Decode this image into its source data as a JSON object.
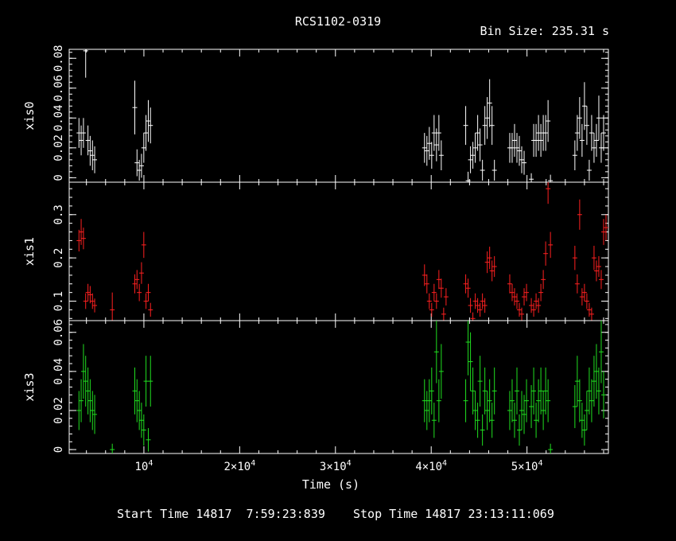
{
  "title": "RCS1102-0319",
  "bin_size_text": "Bin Size: 235.31 s",
  "footer": {
    "start": "Start Time 14817  7:59:23:839",
    "stop": "Stop Time 14817 23:13:11:069"
  },
  "colors": {
    "background": "#000000",
    "axes": "#ffffff",
    "xis0": "#ffffff",
    "xis1": "#ff2020",
    "xis3": "#20e020"
  },
  "chart_data": {
    "type": "scatter",
    "xlabel": "Time (s)",
    "xlim": [
      2200,
      58500
    ],
    "xticks": [
      {
        "value": 10000,
        "label": "10^4"
      },
      {
        "value": 20000,
        "label": "2×10^4"
      },
      {
        "value": 30000,
        "label": "3×10^4"
      },
      {
        "value": 40000,
        "label": "4×10^4"
      },
      {
        "value": 50000,
        "label": "5×10^4"
      }
    ],
    "panels": [
      {
        "name": "xis0",
        "ylabel": "xis0",
        "color": "#ffffff",
        "ylim": [
          -0.003,
          0.086
        ],
        "yticks": [
          {
            "value": 0,
            "label": "0"
          },
          {
            "value": 0.02,
            "label": "0.02"
          },
          {
            "value": 0.04,
            "label": "0.04"
          },
          {
            "value": 0.06,
            "label": "0.06"
          },
          {
            "value": 0.08,
            "label": "0.08"
          }
        ],
        "points": [
          [
            3220,
            0.03,
            0.01
          ],
          [
            3450,
            0.025,
            0.01
          ],
          [
            3690,
            0.03,
            0.01
          ],
          [
            3920,
            0.085,
            0.018
          ],
          [
            4160,
            0.025,
            0.01
          ],
          [
            4390,
            0.018,
            0.01
          ],
          [
            4630,
            0.015,
            0.01
          ],
          [
            4860,
            0.012,
            0.009
          ],
          [
            9050,
            0.047,
            0.018
          ],
          [
            9280,
            0.01,
            0.009
          ],
          [
            9520,
            0.005,
            0.007
          ],
          [
            9750,
            0.008,
            0.008
          ],
          [
            9990,
            0.02,
            0.01
          ],
          [
            10220,
            0.03,
            0.012
          ],
          [
            10460,
            0.038,
            0.014
          ],
          [
            10690,
            0.035,
            0.012
          ],
          [
            39300,
            0.02,
            0.01
          ],
          [
            39550,
            0.018,
            0.01
          ],
          [
            39800,
            0.023,
            0.011
          ],
          [
            40050,
            0.015,
            0.009
          ],
          [
            40300,
            0.03,
            0.012
          ],
          [
            40550,
            0.022,
            0.011
          ],
          [
            40800,
            0.03,
            0.012
          ],
          [
            41050,
            0.015,
            0.01
          ],
          [
            43600,
            0.035,
            0.013
          ],
          [
            43850,
            -0.002,
            0.006
          ],
          [
            44100,
            0.012,
            0.009
          ],
          [
            44350,
            0.015,
            0.009
          ],
          [
            44600,
            0.02,
            0.01
          ],
          [
            44850,
            0.03,
            0.012
          ],
          [
            45100,
            0.022,
            0.011
          ],
          [
            45350,
            0.005,
            0.007
          ],
          [
            45600,
            0.035,
            0.013
          ],
          [
            45850,
            0.04,
            0.014
          ],
          [
            46100,
            0.05,
            0.016
          ],
          [
            46350,
            0.035,
            0.013
          ],
          [
            46600,
            0.005,
            0.007
          ],
          [
            48200,
            0.02,
            0.01
          ],
          [
            48450,
            0.02,
            0.01
          ],
          [
            48700,
            0.025,
            0.011
          ],
          [
            48950,
            0.02,
            0.01
          ],
          [
            49200,
            0.018,
            0.01
          ],
          [
            49450,
            0.012,
            0.009
          ],
          [
            49700,
            0.01,
            0.008
          ],
          [
            50450,
            -0.001,
            0.004
          ],
          [
            50700,
            0.025,
            0.011
          ],
          [
            50950,
            0.025,
            0.011
          ],
          [
            51200,
            0.03,
            0.012
          ],
          [
            51450,
            0.025,
            0.011
          ],
          [
            51700,
            0.03,
            0.012
          ],
          [
            51950,
            0.03,
            0.012
          ],
          [
            52200,
            0.038,
            0.014
          ],
          [
            52450,
            -0.002,
            0.004
          ],
          [
            55000,
            0.015,
            0.01
          ],
          [
            55250,
            0.03,
            0.012
          ],
          [
            55500,
            0.04,
            0.014
          ],
          [
            55750,
            0.025,
            0.011
          ],
          [
            56000,
            0.048,
            0.016
          ],
          [
            56250,
            0.035,
            0.013
          ],
          [
            56500,
            0.005,
            0.007
          ],
          [
            56750,
            0.03,
            0.012
          ],
          [
            57000,
            0.02,
            0.01
          ],
          [
            57250,
            0.025,
            0.011
          ],
          [
            57500,
            0.04,
            0.015
          ],
          [
            57750,
            0.02,
            0.01
          ],
          [
            58000,
            0.03,
            0.012
          ]
        ]
      },
      {
        "name": "xis1",
        "ylabel": "xis1",
        "color": "#ff2020",
        "ylim": [
          0.055,
          0.375
        ],
        "yticks": [
          {
            "value": 0.1,
            "label": "0.1"
          },
          {
            "value": 0.2,
            "label": "0.2"
          },
          {
            "value": 0.3,
            "label": "0.3"
          }
        ],
        "points": [
          [
            3220,
            0.24,
            0.025
          ],
          [
            3450,
            0.26,
            0.03
          ],
          [
            3690,
            0.245,
            0.025
          ],
          [
            3920,
            0.1,
            0.018
          ],
          [
            4160,
            0.12,
            0.02
          ],
          [
            4390,
            0.115,
            0.02
          ],
          [
            4630,
            0.1,
            0.018
          ],
          [
            4860,
            0.09,
            0.016
          ],
          [
            6700,
            0.08,
            0.04
          ],
          [
            9050,
            0.14,
            0.022
          ],
          [
            9280,
            0.15,
            0.022
          ],
          [
            9520,
            0.12,
            0.02
          ],
          [
            9750,
            0.165,
            0.025
          ],
          [
            9990,
            0.23,
            0.03
          ],
          [
            10220,
            0.1,
            0.018
          ],
          [
            10460,
            0.12,
            0.02
          ],
          [
            10690,
            0.08,
            0.016
          ],
          [
            39300,
            0.16,
            0.025
          ],
          [
            39550,
            0.14,
            0.022
          ],
          [
            39800,
            0.1,
            0.018
          ],
          [
            40050,
            0.08,
            0.016
          ],
          [
            40300,
            0.12,
            0.02
          ],
          [
            40550,
            0.1,
            0.018
          ],
          [
            40800,
            0.15,
            0.022
          ],
          [
            41050,
            0.13,
            0.022
          ],
          [
            41300,
            0.07,
            0.015
          ],
          [
            41550,
            0.11,
            0.02
          ],
          [
            43600,
            0.14,
            0.022
          ],
          [
            43850,
            0.13,
            0.022
          ],
          [
            44100,
            0.09,
            0.017
          ],
          [
            44350,
            0.06,
            0.014
          ],
          [
            44600,
            0.1,
            0.018
          ],
          [
            44850,
            0.09,
            0.017
          ],
          [
            45100,
            0.08,
            0.016
          ],
          [
            45350,
            0.1,
            0.018
          ],
          [
            45600,
            0.09,
            0.017
          ],
          [
            45850,
            0.19,
            0.025
          ],
          [
            46100,
            0.2,
            0.026
          ],
          [
            46350,
            0.17,
            0.024
          ],
          [
            46600,
            0.18,
            0.024
          ],
          [
            48200,
            0.14,
            0.022
          ],
          [
            48450,
            0.12,
            0.02
          ],
          [
            48700,
            0.11,
            0.02
          ],
          [
            48950,
            0.1,
            0.018
          ],
          [
            49200,
            0.08,
            0.016
          ],
          [
            49450,
            0.07,
            0.015
          ],
          [
            49700,
            0.11,
            0.02
          ],
          [
            49950,
            0.12,
            0.02
          ],
          [
            50450,
            0.09,
            0.017
          ],
          [
            50700,
            0.08,
            0.016
          ],
          [
            50950,
            0.1,
            0.018
          ],
          [
            51200,
            0.09,
            0.017
          ],
          [
            51450,
            0.12,
            0.02
          ],
          [
            51700,
            0.15,
            0.022
          ],
          [
            51950,
            0.21,
            0.028
          ],
          [
            52200,
            0.36,
            0.035
          ],
          [
            52450,
            0.23,
            0.03
          ],
          [
            55000,
            0.2,
            0.028
          ],
          [
            55250,
            0.14,
            0.022
          ],
          [
            55500,
            0.3,
            0.035
          ],
          [
            55750,
            0.11,
            0.02
          ],
          [
            56000,
            0.12,
            0.02
          ],
          [
            56250,
            0.1,
            0.018
          ],
          [
            56500,
            0.08,
            0.016
          ],
          [
            56750,
            0.07,
            0.015
          ],
          [
            57000,
            0.2,
            0.028
          ],
          [
            57250,
            0.17,
            0.024
          ],
          [
            57500,
            0.18,
            0.024
          ],
          [
            57750,
            0.15,
            0.022
          ],
          [
            58000,
            0.26,
            0.03
          ],
          [
            58250,
            0.27,
            0.03
          ]
        ]
      },
      {
        "name": "xis3",
        "ylabel": "xis3",
        "color": "#20e020",
        "ylim": [
          -0.002,
          0.066
        ],
        "yticks": [
          {
            "value": 0,
            "label": "0"
          },
          {
            "value": 0.02,
            "label": "0.02"
          },
          {
            "value": 0.04,
            "label": "0.04"
          },
          {
            "value": 0.06,
            "label": "0.06"
          }
        ],
        "points": [
          [
            3220,
            0.02,
            0.01
          ],
          [
            3450,
            0.025,
            0.011
          ],
          [
            3690,
            0.04,
            0.014
          ],
          [
            3920,
            0.035,
            0.013
          ],
          [
            4160,
            0.03,
            0.012
          ],
          [
            4390,
            0.025,
            0.011
          ],
          [
            4630,
            0.02,
            0.01
          ],
          [
            4860,
            0.018,
            0.01
          ],
          [
            6700,
            0.0,
            0.003
          ],
          [
            9050,
            0.03,
            0.012
          ],
          [
            9280,
            0.025,
            0.011
          ],
          [
            9520,
            0.02,
            0.01
          ],
          [
            9750,
            0.015,
            0.009
          ],
          [
            9990,
            0.01,
            0.008
          ],
          [
            10220,
            0.035,
            0.013
          ],
          [
            10460,
            0.005,
            0.006
          ],
          [
            10690,
            0.035,
            0.013
          ],
          [
            39300,
            0.025,
            0.011
          ],
          [
            39550,
            0.02,
            0.01
          ],
          [
            39800,
            0.025,
            0.011
          ],
          [
            40050,
            0.03,
            0.012
          ],
          [
            40300,
            0.015,
            0.009
          ],
          [
            40550,
            0.05,
            0.016
          ],
          [
            40800,
            0.025,
            0.011
          ],
          [
            41050,
            0.04,
            0.014
          ],
          [
            43600,
            0.025,
            0.011
          ],
          [
            43850,
            0.055,
            0.017
          ],
          [
            44100,
            0.045,
            0.015
          ],
          [
            44350,
            0.03,
            0.012
          ],
          [
            44600,
            0.02,
            0.01
          ],
          [
            44850,
            0.015,
            0.009
          ],
          [
            45100,
            0.035,
            0.013
          ],
          [
            45350,
            0.01,
            0.008
          ],
          [
            45600,
            0.03,
            0.012
          ],
          [
            45850,
            0.02,
            0.01
          ],
          [
            46100,
            0.025,
            0.011
          ],
          [
            46350,
            0.015,
            0.009
          ],
          [
            46600,
            0.03,
            0.012
          ],
          [
            48200,
            0.02,
            0.01
          ],
          [
            48450,
            0.025,
            0.011
          ],
          [
            48700,
            0.015,
            0.009
          ],
          [
            48950,
            0.03,
            0.012
          ],
          [
            49200,
            0.01,
            0.008
          ],
          [
            49450,
            0.02,
            0.01
          ],
          [
            49700,
            0.018,
            0.01
          ],
          [
            49950,
            0.025,
            0.011
          ],
          [
            50450,
            0.022,
            0.011
          ],
          [
            50700,
            0.03,
            0.012
          ],
          [
            50950,
            0.015,
            0.009
          ],
          [
            51200,
            0.025,
            0.011
          ],
          [
            51450,
            0.03,
            0.012
          ],
          [
            51700,
            0.02,
            0.01
          ],
          [
            51950,
            0.03,
            0.012
          ],
          [
            52200,
            0.025,
            0.011
          ],
          [
            52450,
            0.0,
            0.003
          ],
          [
            55000,
            0.022,
            0.011
          ],
          [
            55250,
            0.035,
            0.013
          ],
          [
            55500,
            0.025,
            0.011
          ],
          [
            55750,
            0.015,
            0.009
          ],
          [
            56000,
            0.01,
            0.008
          ],
          [
            56250,
            0.02,
            0.01
          ],
          [
            56500,
            0.03,
            0.012
          ],
          [
            56750,
            0.025,
            0.011
          ],
          [
            57000,
            0.035,
            0.013
          ],
          [
            57250,
            0.04,
            0.014
          ],
          [
            57500,
            0.03,
            0.012
          ],
          [
            57750,
            0.05,
            0.016
          ],
          [
            58000,
            0.028,
            0.012
          ]
        ]
      }
    ]
  }
}
